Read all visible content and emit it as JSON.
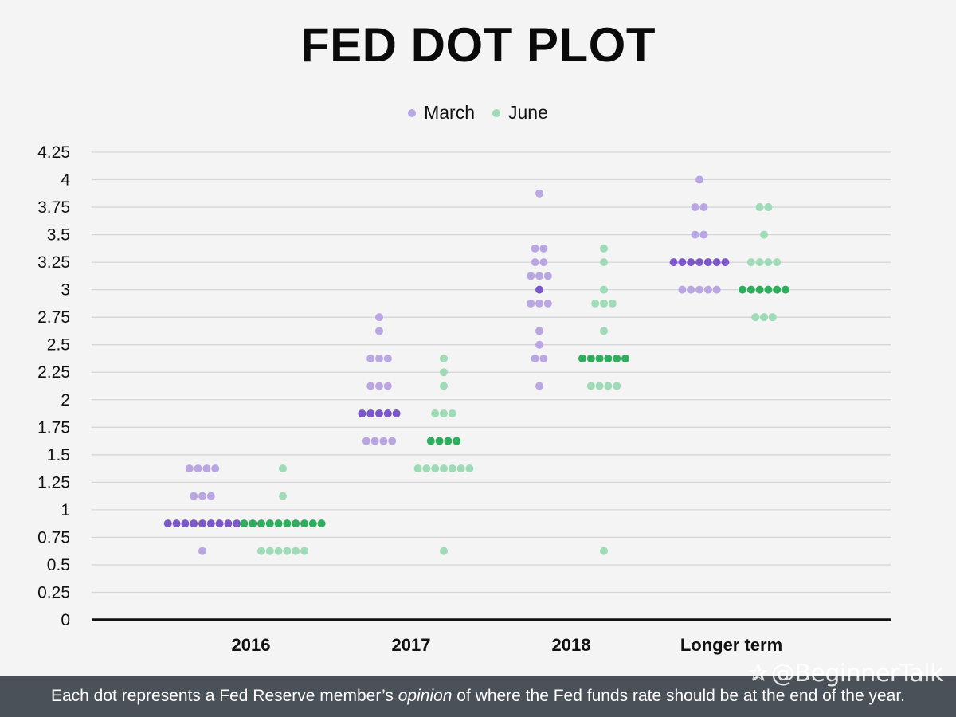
{
  "title": "FED DOT PLOT",
  "legend": [
    {
      "label": "March",
      "color": "#b9a6e3"
    },
    {
      "label": "June",
      "color": "#9fdbb6"
    }
  ],
  "colors": {
    "march_light": "#b9a6e3",
    "march_dark": "#7b57c9",
    "june_light": "#9fdbb6",
    "june_dark": "#2eae5c",
    "gridline": "#d6d6d6",
    "axis": "#111111"
  },
  "footer": {
    "before": "Each dot represents a Fed Reserve member’s ",
    "emphasis": "opinion",
    "after": " of where the Fed funds rate should be at the end of the year."
  },
  "watermark": {
    "text": "@BeginnerTalk",
    "icon": "bird-logo-icon"
  },
  "chart_data": {
    "type": "scatter",
    "title": "FED DOT PLOT",
    "xlabel": "",
    "ylabel": "",
    "categories": [
      "2016",
      "2017",
      "2018",
      "Longer term"
    ],
    "ylim": [
      0,
      4.25
    ],
    "yticks": [
      0,
      0.25,
      0.5,
      0.75,
      1,
      1.25,
      1.5,
      1.75,
      2,
      2.25,
      2.5,
      2.75,
      3,
      3.25,
      3.5,
      3.75,
      4,
      4.25
    ],
    "ytick_labels": [
      "0",
      "0.25",
      "0.5",
      "0.75",
      "1",
      "1.25",
      "1.5",
      "1.75",
      "2",
      "2.25",
      "2.5",
      "2.75",
      "3",
      "3.25",
      "3.5",
      "3.75",
      "4",
      "4.25"
    ],
    "grid": true,
    "legend_position": "top-center",
    "series": [
      {
        "name": "March",
        "groups": [
          {
            "category": "2016",
            "levels": [
              {
                "value": 1.375,
                "count": 4
              },
              {
                "value": 1.125,
                "count": 3
              },
              {
                "value": 0.875,
                "count": 9,
                "median": true
              },
              {
                "value": 0.625,
                "count": 1
              }
            ]
          },
          {
            "category": "2017",
            "levels": [
              {
                "value": 2.75,
                "count": 1
              },
              {
                "value": 2.625,
                "count": 1
              },
              {
                "value": 2.375,
                "count": 3
              },
              {
                "value": 2.125,
                "count": 3
              },
              {
                "value": 1.875,
                "count": 5,
                "median": true
              },
              {
                "value": 1.625,
                "count": 4
              }
            ]
          },
          {
            "category": "2018",
            "levels": [
              {
                "value": 3.875,
                "count": 1
              },
              {
                "value": 3.375,
                "count": 2
              },
              {
                "value": 3.25,
                "count": 2
              },
              {
                "value": 3.125,
                "count": 3
              },
              {
                "value": 3.0,
                "count": 1,
                "median": true
              },
              {
                "value": 2.875,
                "count": 3
              },
              {
                "value": 2.625,
                "count": 1
              },
              {
                "value": 2.5,
                "count": 1
              },
              {
                "value": 2.375,
                "count": 2
              },
              {
                "value": 2.125,
                "count": 1
              }
            ]
          },
          {
            "category": "Longer term",
            "levels": [
              {
                "value": 4.0,
                "count": 1
              },
              {
                "value": 3.75,
                "count": 2
              },
              {
                "value": 3.5,
                "count": 2
              },
              {
                "value": 3.25,
                "count": 7,
                "median": true
              },
              {
                "value": 3.0,
                "count": 5
              }
            ]
          }
        ]
      },
      {
        "name": "June",
        "groups": [
          {
            "category": "2016",
            "levels": [
              {
                "value": 1.375,
                "count": 1
              },
              {
                "value": 1.125,
                "count": 1
              },
              {
                "value": 0.875,
                "count": 10,
                "median": true
              },
              {
                "value": 0.625,
                "count": 6
              }
            ]
          },
          {
            "category": "2017",
            "levels": [
              {
                "value": 2.375,
                "count": 1
              },
              {
                "value": 2.25,
                "count": 1
              },
              {
                "value": 2.125,
                "count": 1
              },
              {
                "value": 1.875,
                "count": 3
              },
              {
                "value": 1.625,
                "count": 4,
                "median": true
              },
              {
                "value": 1.375,
                "count": 7
              },
              {
                "value": 0.625,
                "count": 1
              }
            ]
          },
          {
            "category": "2018",
            "levels": [
              {
                "value": 3.375,
                "count": 1
              },
              {
                "value": 3.25,
                "count": 1
              },
              {
                "value": 3.0,
                "count": 1
              },
              {
                "value": 2.875,
                "count": 3
              },
              {
                "value": 2.625,
                "count": 1
              },
              {
                "value": 2.375,
                "count": 6,
                "median": true
              },
              {
                "value": 2.125,
                "count": 4
              },
              {
                "value": 0.625,
                "count": 1
              }
            ]
          },
          {
            "category": "Longer term",
            "levels": [
              {
                "value": 3.75,
                "count": 2
              },
              {
                "value": 3.5,
                "count": 1
              },
              {
                "value": 3.25,
                "count": 4
              },
              {
                "value": 3.0,
                "count": 6,
                "median": true
              },
              {
                "value": 2.75,
                "count": 3
              }
            ]
          }
        ]
      }
    ]
  }
}
